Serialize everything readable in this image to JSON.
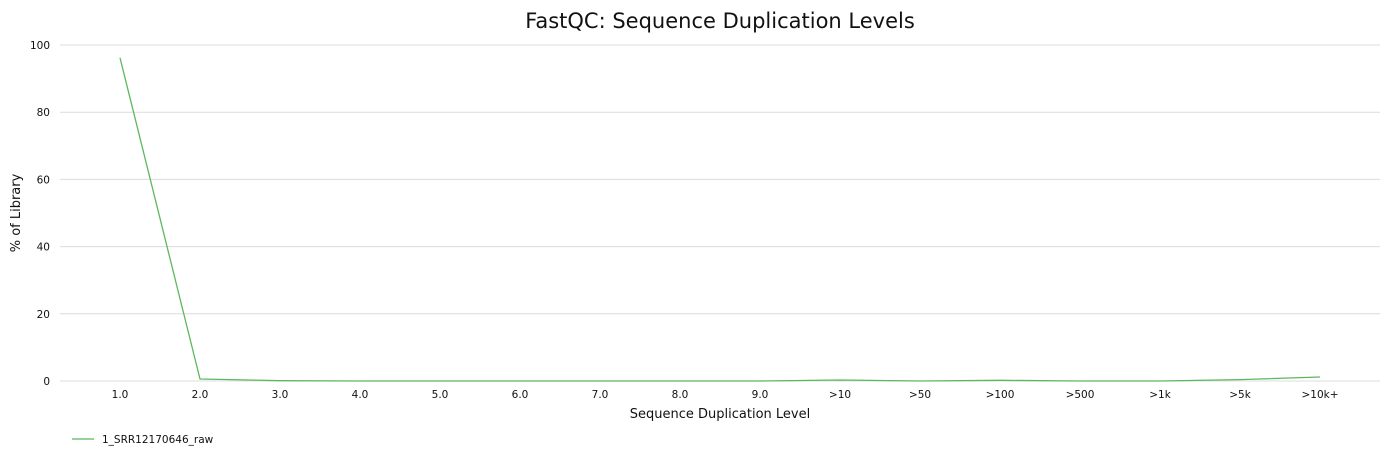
{
  "chart_data": {
    "type": "line",
    "title": "FastQC: Sequence Duplication Levels",
    "xlabel": "Sequence Duplication Level",
    "ylabel": "% of Library",
    "categories": [
      "1.0",
      "2.0",
      "3.0",
      "4.0",
      "5.0",
      "6.0",
      "7.0",
      "8.0",
      "9.0",
      ">10",
      ">50",
      ">100",
      ">500",
      ">1k",
      ">5k",
      ">10k+"
    ],
    "ylim": [
      0,
      100
    ],
    "yticks": [
      0,
      20,
      40,
      60,
      80,
      100
    ],
    "grid": true,
    "legend_position": "bottom-left",
    "series": [
      {
        "name": "1_SRR12170646_raw",
        "color": "#5cb85c",
        "values": [
          96.2,
          0.6,
          0.1,
          0.0,
          0.0,
          0.0,
          0.0,
          0.0,
          0.0,
          0.3,
          0.0,
          0.2,
          0.0,
          0.0,
          0.4,
          1.2
        ]
      }
    ]
  }
}
